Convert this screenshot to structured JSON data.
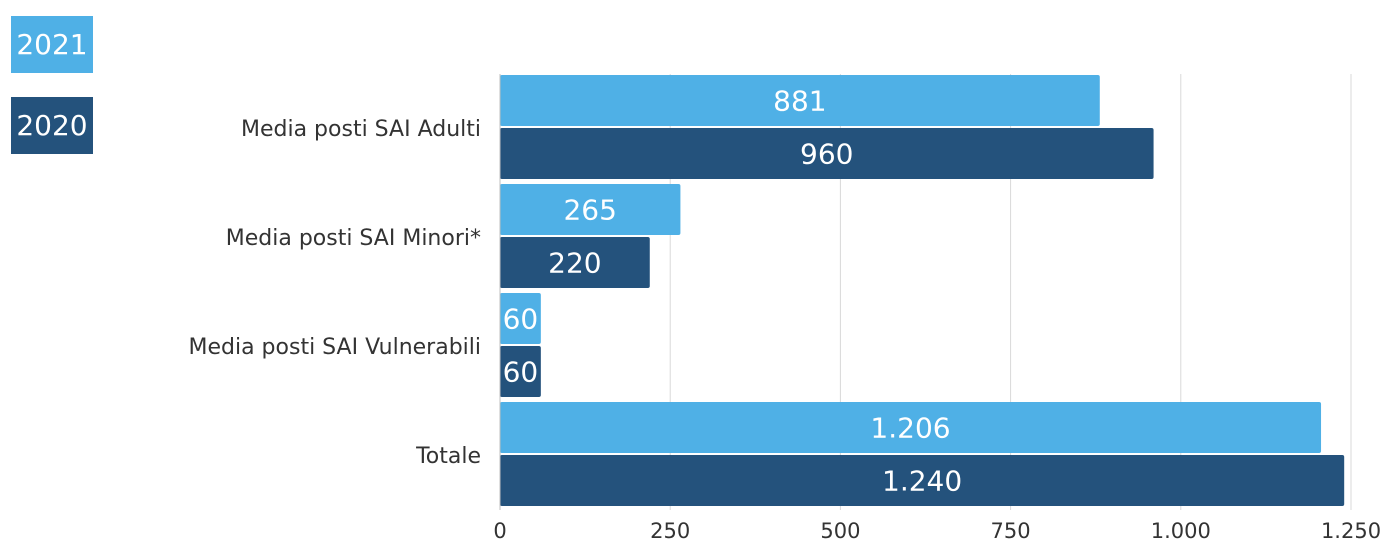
{
  "chart_data": {
    "type": "bar",
    "orientation": "horizontal",
    "categories": [
      "Media posti SAI Adulti",
      "Media posti SAI Minori*",
      "Media posti SAI Vulnerabili",
      "Totale"
    ],
    "series": [
      {
        "name": "2021",
        "values": [
          881,
          265,
          60,
          1206
        ],
        "labels": [
          "881",
          "265",
          "60",
          "1.206"
        ],
        "color": "#4fb0e6"
      },
      {
        "name": "2020",
        "values": [
          960,
          220,
          60,
          1240
        ],
        "labels": [
          "960",
          "220",
          "60",
          "1.240"
        ],
        "color": "#24527c"
      }
    ],
    "xlim": [
      0,
      1250
    ],
    "xticks": [
      0,
      250,
      500,
      750,
      1000,
      1250
    ],
    "xtick_labels": [
      "0",
      "250",
      "500",
      "750",
      "1.000",
      "1.250"
    ],
    "grid": "vertical",
    "legend_position": "top-left",
    "title": "",
    "xlabel": "",
    "ylabel": ""
  }
}
